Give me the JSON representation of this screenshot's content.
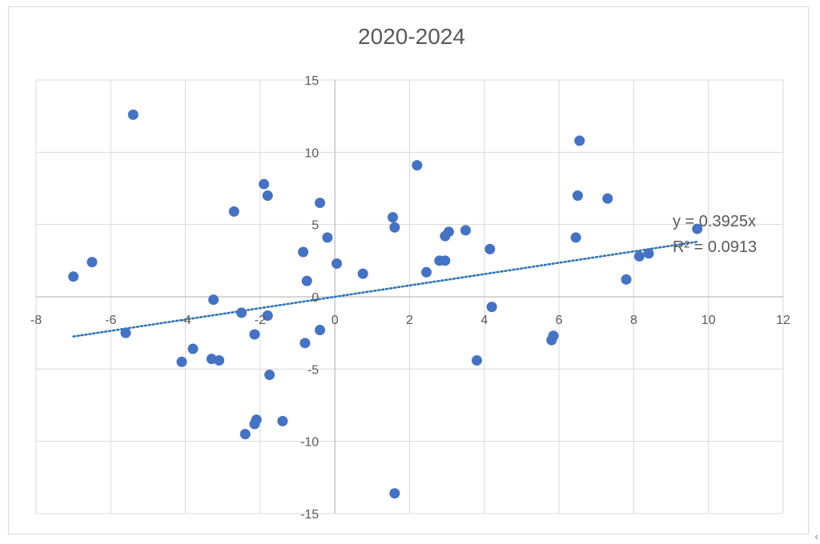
{
  "chart_data": {
    "type": "scatter",
    "title": "2020-2024",
    "xlabel": "",
    "ylabel": "",
    "xlim": [
      -8,
      12
    ],
    "ylim": [
      -15,
      15
    ],
    "xticks": [
      "-8",
      "-6",
      "-4",
      "-2",
      "0",
      "2",
      "4",
      "6",
      "8",
      "10",
      "12"
    ],
    "yticks": [
      "-15",
      "-10",
      "-5",
      "0",
      "5",
      "10",
      "15"
    ],
    "grid": true,
    "point_color": "#4472c4",
    "trendline_color": "#2e75b6",
    "points": [
      {
        "x": -7.0,
        "y": 1.4
      },
      {
        "x": -6.5,
        "y": 2.4
      },
      {
        "x": -5.6,
        "y": -2.5
      },
      {
        "x": -5.4,
        "y": 12.6
      },
      {
        "x": -4.1,
        "y": -4.5
      },
      {
        "x": -3.8,
        "y": -3.6
      },
      {
        "x": -3.3,
        "y": -4.3
      },
      {
        "x": -3.1,
        "y": -4.4
      },
      {
        "x": -3.25,
        "y": -0.2
      },
      {
        "x": -2.7,
        "y": 5.9
      },
      {
        "x": -2.5,
        "y": -1.1
      },
      {
        "x": -2.4,
        "y": -9.5
      },
      {
        "x": -2.15,
        "y": -8.8
      },
      {
        "x": -2.1,
        "y": -8.5
      },
      {
        "x": -2.15,
        "y": -2.6
      },
      {
        "x": -1.9,
        "y": 7.8
      },
      {
        "x": -1.8,
        "y": 7.0
      },
      {
        "x": -1.8,
        "y": -1.3
      },
      {
        "x": -1.75,
        "y": -5.4
      },
      {
        "x": -1.4,
        "y": -8.6
      },
      {
        "x": -0.85,
        "y": 3.1
      },
      {
        "x": -0.75,
        "y": 1.1
      },
      {
        "x": -0.8,
        "y": -3.2
      },
      {
        "x": -0.4,
        "y": 6.5
      },
      {
        "x": -0.4,
        "y": -2.3
      },
      {
        "x": -0.2,
        "y": 4.1
      },
      {
        "x": 0.05,
        "y": 2.3
      },
      {
        "x": 0.75,
        "y": 1.6
      },
      {
        "x": 1.55,
        "y": 5.5
      },
      {
        "x": 1.6,
        "y": 4.8
      },
      {
        "x": 1.6,
        "y": -13.6
      },
      {
        "x": 2.2,
        "y": 9.1
      },
      {
        "x": 2.45,
        "y": 1.7
      },
      {
        "x": 2.8,
        "y": 2.5
      },
      {
        "x": 2.95,
        "y": 2.5
      },
      {
        "x": 2.95,
        "y": 4.2
      },
      {
        "x": 3.05,
        "y": 4.5
      },
      {
        "x": 3.5,
        "y": 4.6
      },
      {
        "x": 3.8,
        "y": -4.4
      },
      {
        "x": 4.15,
        "y": 3.3
      },
      {
        "x": 4.2,
        "y": -0.7
      },
      {
        "x": 5.8,
        "y": -3.0
      },
      {
        "x": 5.85,
        "y": -2.7
      },
      {
        "x": 6.45,
        "y": 4.1
      },
      {
        "x": 6.5,
        "y": 7.0
      },
      {
        "x": 6.55,
        "y": 10.8
      },
      {
        "x": 7.3,
        "y": 6.8
      },
      {
        "x": 7.8,
        "y": 1.2
      },
      {
        "x": 8.15,
        "y": 2.8
      },
      {
        "x": 8.4,
        "y": 3.0
      },
      {
        "x": 9.7,
        "y": 4.7
      }
    ],
    "trendline": {
      "style": "dotted",
      "slope": 0.3925,
      "intercept": 0,
      "x_range": [
        -7.0,
        9.7
      ],
      "equation": "y = 0.3925x",
      "r_squared": "R² = 0.0913"
    }
  },
  "corner_icon": "‹"
}
